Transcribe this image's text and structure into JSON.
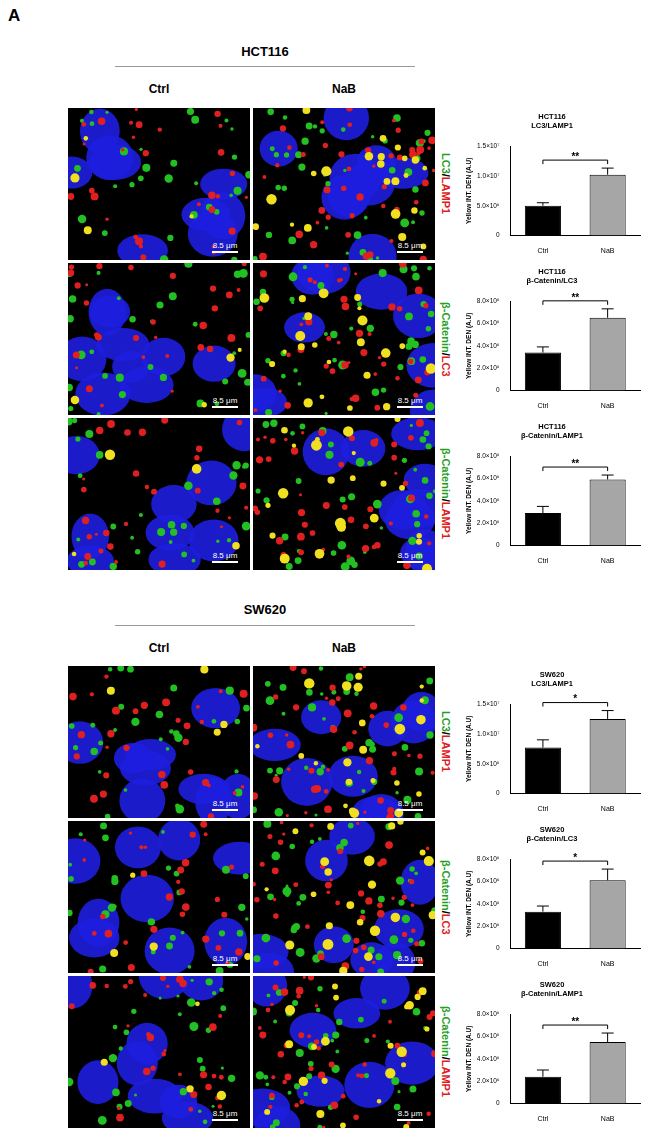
{
  "panel_label": "A",
  "scale_bar": "8.5 μm",
  "stain_separator": "/",
  "stain_colors": [
    "#1fa01f",
    "#e01b1b"
  ],
  "sections": [
    {
      "cell_line": "HCT116",
      "columns": [
        "Ctrl",
        "NaB"
      ],
      "stains": [
        [
          "LC3",
          "LAMP1"
        ],
        [
          "β-Catenin",
          "LC3"
        ],
        [
          "β-Catenin",
          "LAMP1"
        ]
      ]
    },
    {
      "cell_line": "SW620",
      "columns": [
        "Ctrl",
        "NaB"
      ],
      "stains": [
        [
          "LC3",
          "LAMP1"
        ],
        [
          "β-Catenin",
          "LC3"
        ],
        [
          "β-Catenin",
          "LAMP1"
        ]
      ]
    }
  ],
  "chart_data": [
    {
      "type": "bar",
      "title": [
        "HCT116",
        "LC3/LAMP1"
      ],
      "y_label": "Yellow INT. DEN (A.U)",
      "categories": [
        "Ctrl",
        "NaB"
      ],
      "values": [
        5000000,
        10200000
      ],
      "errors": [
        500000,
        1100000
      ],
      "colors": [
        "#000000",
        "#a6a6a6"
      ],
      "ylim": [
        0,
        15000000
      ],
      "yticks": [
        0,
        {
          "value": 5000000,
          "label": "5.0×10⁶"
        },
        {
          "value": 10000000,
          "label": "1.0×10⁷"
        },
        {
          "value": 15000000,
          "label": "1.5×10⁷"
        }
      ],
      "grid": false,
      "annotation": "**"
    },
    {
      "type": "bar",
      "title": [
        "HCT116",
        "β-Catenin/LC3"
      ],
      "y_label": "Yellow INT. DEN (A.U)",
      "categories": [
        "Ctrl",
        "NaB"
      ],
      "values": [
        3400000,
        6500000
      ],
      "errors": [
        500000,
        800000
      ],
      "colors": [
        "#000000",
        "#a6a6a6"
      ],
      "ylim": [
        0,
        8000000
      ],
      "yticks": [
        0,
        {
          "value": 2000000,
          "label": "2.0×10⁶"
        },
        {
          "value": 4000000,
          "label": "4.0×10⁶"
        },
        {
          "value": 6000000,
          "label": "6.0×10⁶"
        },
        {
          "value": 8000000,
          "label": "8.0×10⁶"
        }
      ],
      "grid": false,
      "annotation": "**"
    },
    {
      "type": "bar",
      "title": [
        "HCT116",
        "β-Catenin/LAMP1"
      ],
      "y_label": "Yellow INT. DEN (A.U)",
      "categories": [
        "Ctrl",
        "NaB"
      ],
      "values": [
        2900000,
        5900000
      ],
      "errors": [
        600000,
        400000
      ],
      "colors": [
        "#000000",
        "#a6a6a6"
      ],
      "ylim": [
        0,
        8000000
      ],
      "yticks": [
        0,
        {
          "value": 2000000,
          "label": "2.0×10⁶"
        },
        {
          "value": 4000000,
          "label": "4.0×10⁶"
        },
        {
          "value": 6000000,
          "label": "6.0×10⁶"
        },
        {
          "value": 8000000,
          "label": "8.0×10⁶"
        }
      ],
      "grid": false,
      "annotation": "**"
    },
    {
      "type": "bar",
      "title": [
        "SW620",
        "LC3/LAMP1"
      ],
      "y_label": "Yellow INT. DEN (A.U)",
      "categories": [
        "Ctrl",
        "NaB"
      ],
      "values": [
        7700000,
        12500000
      ],
      "errors": [
        1300000,
        1400000
      ],
      "colors": [
        "#000000",
        "#a6a6a6"
      ],
      "ylim": [
        0,
        15000000
      ],
      "yticks": [
        0,
        {
          "value": 5000000,
          "label": "5.0×10⁶"
        },
        {
          "value": 10000000,
          "label": "1.0×10⁷"
        },
        {
          "value": 15000000,
          "label": "1.5×10⁷"
        }
      ],
      "grid": false,
      "annotation": "*"
    },
    {
      "type": "bar",
      "title": [
        "SW620",
        "β-Catenin/LC3"
      ],
      "y_label": "Yellow INT. DEN (A.U)",
      "categories": [
        "Ctrl",
        "NaB"
      ],
      "values": [
        3300000,
        6100000
      ],
      "errors": [
        500000,
        1000000
      ],
      "colors": [
        "#000000",
        "#a6a6a6"
      ],
      "ylim": [
        0,
        8000000
      ],
      "yticks": [
        0,
        {
          "value": 2000000,
          "label": "2.0×10⁶"
        },
        {
          "value": 4000000,
          "label": "4.0×10⁶"
        },
        {
          "value": 6000000,
          "label": "6.0×10⁶"
        },
        {
          "value": 8000000,
          "label": "8.0×10⁶"
        }
      ],
      "grid": false,
      "annotation": "*"
    },
    {
      "type": "bar",
      "title": [
        "SW620",
        "β-Catenin/LAMP1"
      ],
      "y_label": "Yellow INT. DEN (A.U)",
      "categories": [
        "Ctrl",
        "NaB"
      ],
      "values": [
        2400000,
        5500000
      ],
      "errors": [
        600000,
        800000
      ],
      "colors": [
        "#000000",
        "#a6a6a6"
      ],
      "ylim": [
        0,
        8000000
      ],
      "yticks": [
        0,
        {
          "value": 2000000,
          "label": "2.0×10⁶"
        },
        {
          "value": 4000000,
          "label": "4.0×10⁶"
        },
        {
          "value": 6000000,
          "label": "6.0×10⁶"
        },
        {
          "value": 8000000,
          "label": "8.0×10⁶"
        }
      ],
      "grid": false,
      "annotation": "**"
    }
  ]
}
